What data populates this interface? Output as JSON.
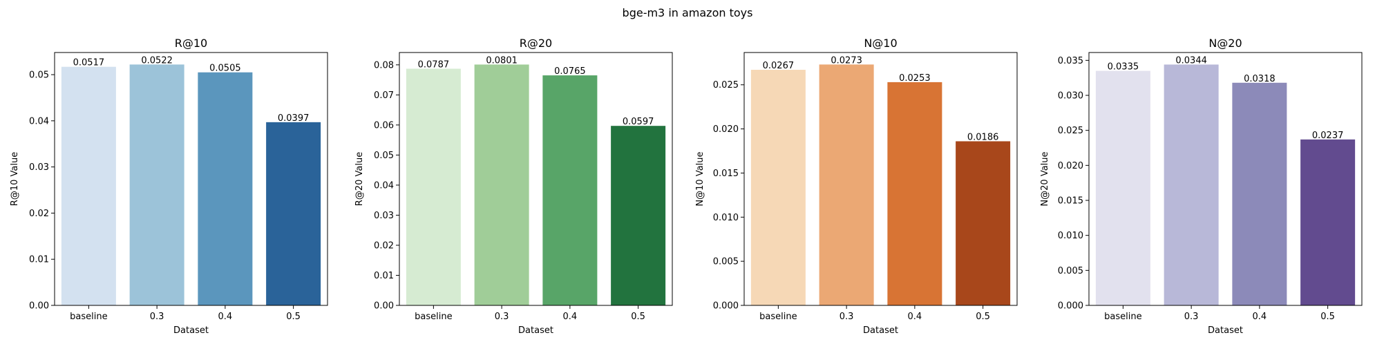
{
  "figure": {
    "title": "bge-m3 in amazon toys"
  },
  "chart_data": [
    {
      "type": "bar",
      "title": "R@10",
      "xlabel": "Dataset",
      "ylabel": "R@10 Value",
      "categories": [
        "baseline",
        "0.3",
        "0.4",
        "0.5"
      ],
      "values": [
        0.0517,
        0.0522,
        0.0505,
        0.0397
      ],
      "value_labels": [
        "0.0517",
        "0.0522",
        "0.0505",
        "0.0397"
      ],
      "ylim": [
        0,
        0.0548
      ],
      "yticks": [
        0.0,
        0.01,
        0.02,
        0.03,
        0.04,
        0.05
      ],
      "ytick_labels": [
        "0.00",
        "0.01",
        "0.02",
        "0.03",
        "0.04",
        "0.05"
      ],
      "colors": [
        "#d3e1f0",
        "#9cc3d9",
        "#5b96bd",
        "#2a6399"
      ],
      "grid": false,
      "legend": "none"
    },
    {
      "type": "bar",
      "title": "R@20",
      "xlabel": "Dataset",
      "ylabel": "R@20 Value",
      "categories": [
        "baseline",
        "0.3",
        "0.4",
        "0.5"
      ],
      "values": [
        0.0787,
        0.0801,
        0.0765,
        0.0597
      ],
      "value_labels": [
        "0.0787",
        "0.0801",
        "0.0765",
        "0.0597"
      ],
      "ylim": [
        0,
        0.0841
      ],
      "yticks": [
        0.0,
        0.01,
        0.02,
        0.03,
        0.04,
        0.05,
        0.06,
        0.07,
        0.08
      ],
      "ytick_labels": [
        "0.00",
        "0.01",
        "0.02",
        "0.03",
        "0.04",
        "0.05",
        "0.06",
        "0.07",
        "0.08"
      ],
      "colors": [
        "#d6ebd2",
        "#a0cd98",
        "#58a568",
        "#22733e"
      ],
      "grid": false,
      "legend": "none"
    },
    {
      "type": "bar",
      "title": "N@10",
      "xlabel": "Dataset",
      "ylabel": "N@10 Value",
      "categories": [
        "baseline",
        "0.3",
        "0.4",
        "0.5"
      ],
      "values": [
        0.0267,
        0.0273,
        0.0253,
        0.0186
      ],
      "value_labels": [
        "0.0267",
        "0.0273",
        "0.0253",
        "0.0186"
      ],
      "ylim": [
        0,
        0.02866
      ],
      "yticks": [
        0.0,
        0.005,
        0.01,
        0.015,
        0.02,
        0.025
      ],
      "ytick_labels": [
        "0.000",
        "0.005",
        "0.010",
        "0.015",
        "0.020",
        "0.025"
      ],
      "colors": [
        "#f6d8b6",
        "#eba874",
        "#d87434",
        "#a8471b"
      ],
      "grid": false,
      "legend": "none"
    },
    {
      "type": "bar",
      "title": "N@20",
      "xlabel": "Dataset",
      "ylabel": "N@20 Value",
      "categories": [
        "baseline",
        "0.3",
        "0.4",
        "0.5"
      ],
      "values": [
        0.0335,
        0.0344,
        0.0318,
        0.0237
      ],
      "value_labels": [
        "0.0335",
        "0.0344",
        "0.0318",
        "0.0237"
      ],
      "ylim": [
        0,
        0.03612
      ],
      "yticks": [
        0.0,
        0.005,
        0.01,
        0.015,
        0.02,
        0.025,
        0.03,
        0.035
      ],
      "ytick_labels": [
        "0.000",
        "0.005",
        "0.010",
        "0.015",
        "0.020",
        "0.025",
        "0.030",
        "0.035"
      ],
      "colors": [
        "#e2e1ee",
        "#b8b8d8",
        "#8c8ab9",
        "#624b8f"
      ],
      "grid": false,
      "legend": "none"
    }
  ]
}
